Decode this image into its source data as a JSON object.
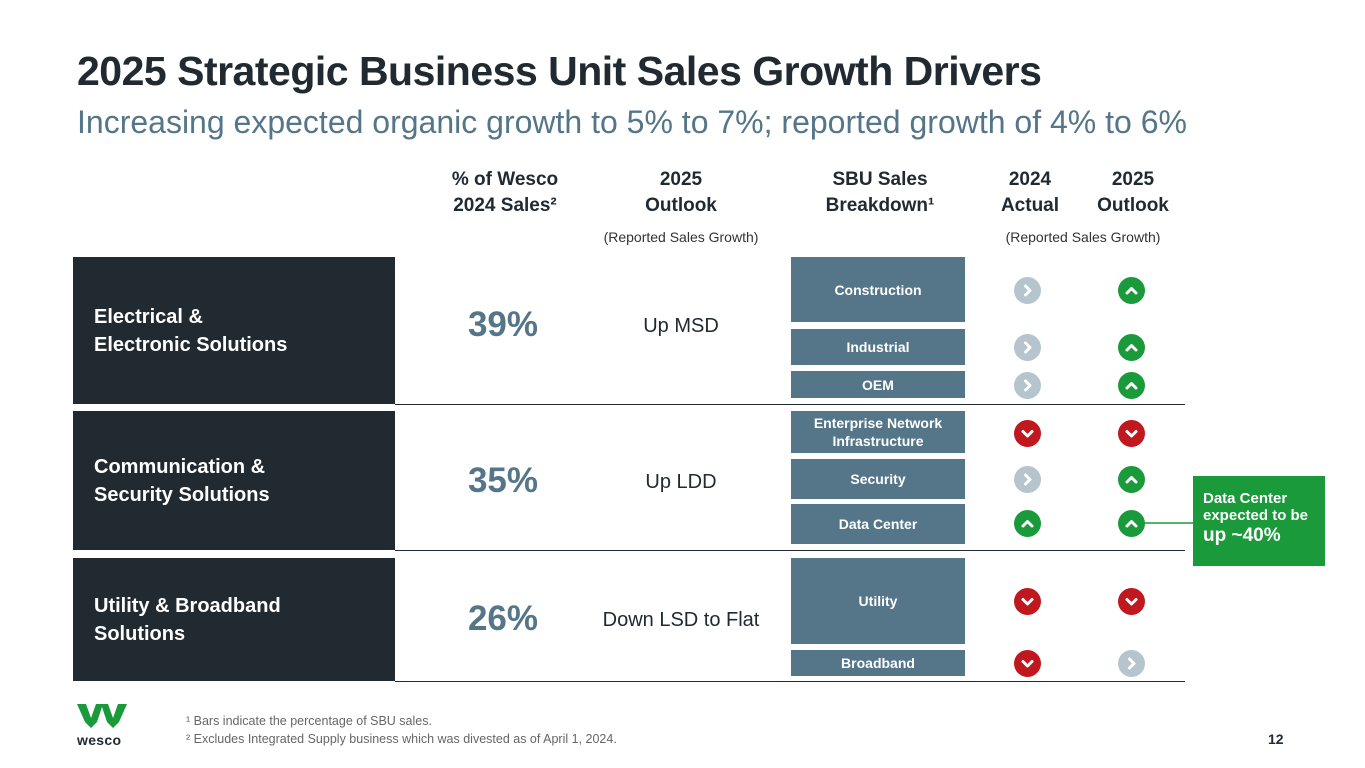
{
  "title": "2025 Strategic Business Unit Sales Growth Drivers",
  "subtitle": "Increasing expected organic growth to 5% to 7%; reported growth of 4% to 6%",
  "headers": {
    "pct_line1": "% of Wesco",
    "pct_line2": "2024 Sales²",
    "outlook_line1": "2025",
    "outlook_line2": "Outlook",
    "outlook_sub": "(Reported Sales Growth)",
    "sbu_line1": "SBU Sales",
    "sbu_line2": "Breakdown¹",
    "actual_line1": "2024",
    "actual_line2": "Actual",
    "outlook2_line1": "2025",
    "outlook2_line2": "Outlook",
    "growth_sub": "(Reported Sales Growth)"
  },
  "segments": [
    {
      "name_line1": "Electrical &",
      "name_line2": "Electronic Solutions",
      "pct": "39%",
      "outlook": "Up MSD",
      "sbus": [
        {
          "label": "Construction",
          "actual": "flat",
          "outlook": "up"
        },
        {
          "label": "Industrial",
          "actual": "flat",
          "outlook": "up"
        },
        {
          "label": "OEM",
          "actual": "flat",
          "outlook": "up"
        }
      ]
    },
    {
      "name_line1": "Communication &",
      "name_line2": "Security Solutions",
      "pct": "35%",
      "outlook": "Up LDD",
      "sbus": [
        {
          "label_line1": "Enterprise Network",
          "label_line2": "Infrastructure",
          "actual": "down",
          "outlook": "down"
        },
        {
          "label": "Security",
          "actual": "flat",
          "outlook": "up"
        },
        {
          "label": "Data Center",
          "actual": "up",
          "outlook": "up"
        }
      ]
    },
    {
      "name_line1": "Utility & Broadband",
      "name_line2": "Solutions",
      "pct": "26%",
      "outlook": "Down LSD to Flat",
      "sbus": [
        {
          "label": "Utility",
          "actual": "down",
          "outlook": "down"
        },
        {
          "label": "Broadband",
          "actual": "down",
          "outlook": "flat"
        }
      ]
    }
  ],
  "callout": {
    "line1": "Data Center",
    "line2": "expected to be",
    "line3": "up ~40%"
  },
  "footnotes": [
    "¹ Bars indicate the percentage of SBU sales.",
    "² Excludes Integrated Supply business which was divested as of April 1, 2024."
  ],
  "logo_text": "wesco",
  "page_number": "12",
  "colors": {
    "dark": "#212a31",
    "slate": "#557688",
    "green": "#1a9a3a",
    "red": "#c0181f",
    "neutral": "#b5c4cd"
  }
}
